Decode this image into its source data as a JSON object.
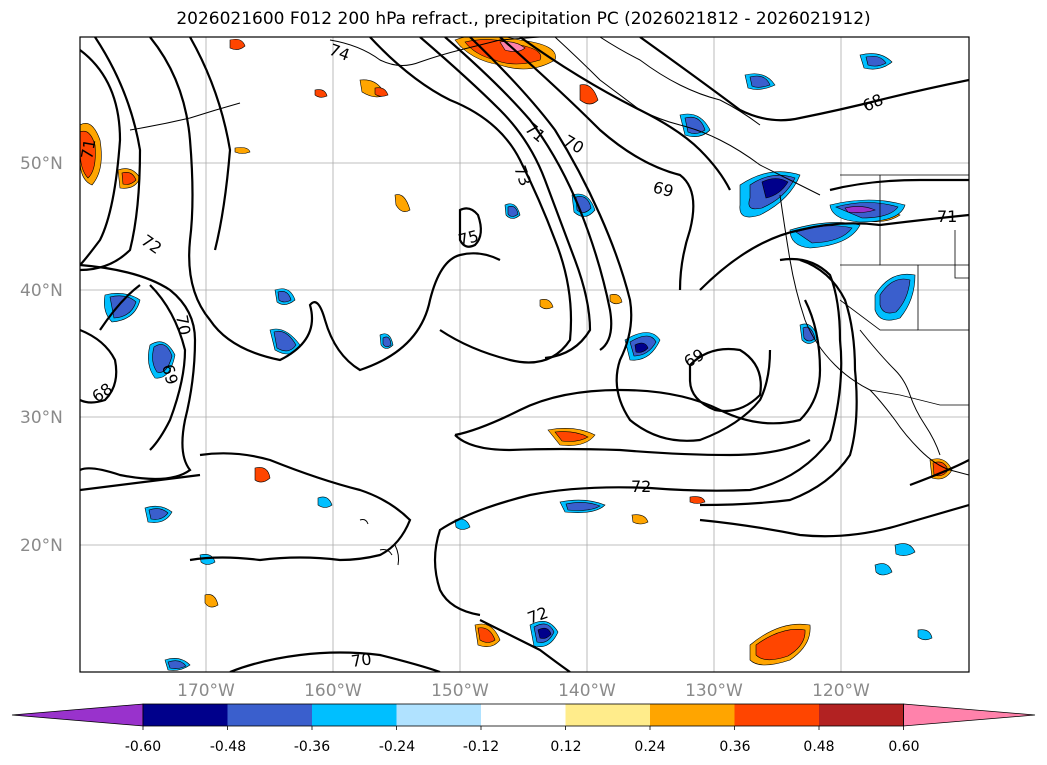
{
  "title": "2026021600 F012 200 hPa refract., precipitation PC (2026021812 - 2026021912)",
  "map": {
    "lon_range": [
      -180,
      -110
    ],
    "lat_range": [
      10,
      60
    ],
    "lat_ticks": [
      {
        "label": "50°N",
        "lat": 50
      },
      {
        "label": "40°N",
        "lat": 40
      },
      {
        "label": "30°N",
        "lat": 30
      },
      {
        "label": "20°N",
        "lat": 20
      }
    ],
    "lon_ticks": [
      {
        "label": "170°W",
        "lon": -170
      },
      {
        "label": "160°W",
        "lon": -160
      },
      {
        "label": "150°W",
        "lon": -150
      },
      {
        "label": "140°W",
        "lon": -140
      },
      {
        "label": "130°W",
        "lon": -130
      },
      {
        "label": "120°W",
        "lon": -120
      }
    ],
    "contour_labels": [
      "74",
      "71",
      "70",
      "73",
      "69",
      "68",
      "71",
      "72",
      "70",
      "75",
      "69",
      "68",
      "69",
      "72",
      "72",
      "70",
      "71"
    ],
    "gridlines": true
  },
  "colorbar": {
    "ticks": [
      "-0.60",
      "-0.48",
      "-0.36",
      "-0.24",
      "-0.12",
      "0.12",
      "0.24",
      "0.36",
      "0.48",
      "0.60"
    ],
    "colors": [
      "#9932cc",
      "#00008b",
      "#3a5fcd",
      "#00bfff",
      "#b0e2ff",
      "#ffffff",
      "#ffec8b",
      "#ffa500",
      "#ff4500",
      "#b22222",
      "#ff82ab"
    ]
  }
}
